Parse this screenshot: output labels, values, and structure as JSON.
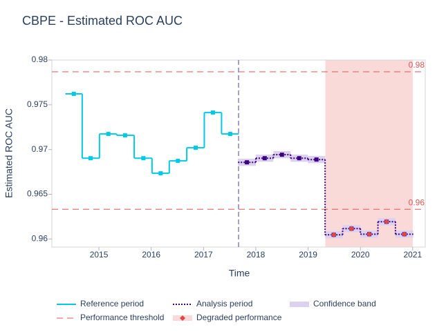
{
  "chart_data": {
    "type": "step",
    "title": "CBPE - Estimated ROC AUC",
    "x_label": "Time",
    "y_label": "Estimated ROC AUC",
    "xlim": [
      2014.1,
      2021.24
    ],
    "xticks": [
      2015,
      2016,
      2017,
      2018,
      2019,
      2020,
      2021
    ],
    "ylim": [
      0.9591,
      0.98
    ],
    "yticks": [
      0.96,
      0.965,
      0.97,
      0.975,
      0.98
    ],
    "series": [
      {
        "name": "Reference period",
        "color": "#00c8e5",
        "style": "solid",
        "x": [
          2014.52,
          2014.84,
          2015.18,
          2015.5,
          2015.85,
          2016.18,
          2016.51,
          2016.85,
          2017.18,
          2017.51
        ],
        "values": [
          0.97622,
          0.96903,
          0.97174,
          0.97158,
          0.96903,
          0.96734,
          0.96873,
          0.9702,
          0.97413,
          0.97174
        ]
      },
      {
        "name": "Analysis period",
        "color": "#3b0280",
        "style": "dotted",
        "x": [
          2017.83,
          2018.17,
          2018.5,
          2018.83,
          2019.16,
          2019.49,
          2019.83,
          2020.17,
          2020.5,
          2020.84
        ],
        "values": [
          0.96857,
          0.96903,
          0.96942,
          0.96903,
          0.96888,
          0.96047,
          0.96116,
          0.96054,
          0.96193,
          0.96054
        ],
        "lower": [
          0.96817,
          0.96863,
          0.96902,
          0.96863,
          0.96848,
          0.96007,
          0.96076,
          0.96014,
          0.96153,
          0.96014
        ],
        "upper": [
          0.96897,
          0.96943,
          0.96982,
          0.96943,
          0.96928,
          0.96087,
          0.96156,
          0.96094,
          0.96233,
          0.96094
        ]
      }
    ],
    "confidence_band": {
      "name": "Confidence band",
      "color": "#dcd1ef"
    },
    "thresholds": {
      "name": "Performance threshold",
      "color": "#e05555",
      "values": [
        0.97869,
        0.96332
      ],
      "value_labels": [
        "0.98",
        "0.96"
      ]
    },
    "degraded": {
      "name": "Degraded performance",
      "color": "#e04848",
      "region_color": "#fad9d9",
      "region": [
        2019.33,
        2021.0
      ],
      "x": [
        2019.49,
        2019.83,
        2020.17,
        2020.5,
        2020.84
      ],
      "values": [
        0.96047,
        0.96116,
        0.96054,
        0.96193,
        0.96054
      ]
    },
    "period_boundary": 2017.67,
    "boundary_color": "#8a7fc0"
  }
}
